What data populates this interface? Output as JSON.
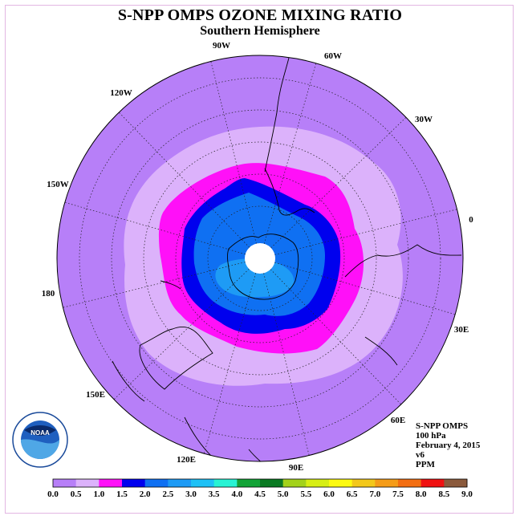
{
  "header": {
    "title": "S-NPP OMPS OZONE MIXING RATIO",
    "subtitle": "Southern Hemisphere"
  },
  "longitude_labels": [
    "90W",
    "60W",
    "30W",
    "0",
    "30E",
    "60E",
    "90E",
    "120E",
    "150E",
    "180",
    "150W",
    "120W"
  ],
  "info": {
    "instrument": "S-NPP OMPS",
    "level": "100 hPa",
    "date": "February 4, 2015",
    "version": "v6",
    "units": "PPM"
  },
  "logo": {
    "text": "NOAA",
    "ring_text": "NATIONAL OCEANIC AND ATMOSPHERIC ADMINISTRATION · U.S. DEPARTMENT OF COMMERCE"
  },
  "colorbar": {
    "ticks": [
      "0.0",
      "0.5",
      "1.0",
      "1.5",
      "2.0",
      "2.5",
      "3.0",
      "3.5",
      "4.0",
      "4.5",
      "5.0",
      "5.5",
      "6.0",
      "6.5",
      "7.0",
      "7.5",
      "8.0",
      "8.5",
      "9.0"
    ],
    "colors": [
      "#b77ff8",
      "#dcb2fb",
      "#ff10f8",
      "#0000ee",
      "#0f70f2",
      "#1e9bf5",
      "#1ec1f6",
      "#28f3d4",
      "#13a437",
      "#0a7a22",
      "#a3d21a",
      "#d7ee14",
      "#fdfa10",
      "#f3c81a",
      "#f59c18",
      "#f36e12",
      "#f01111",
      "#8b5a3c"
    ]
  }
}
